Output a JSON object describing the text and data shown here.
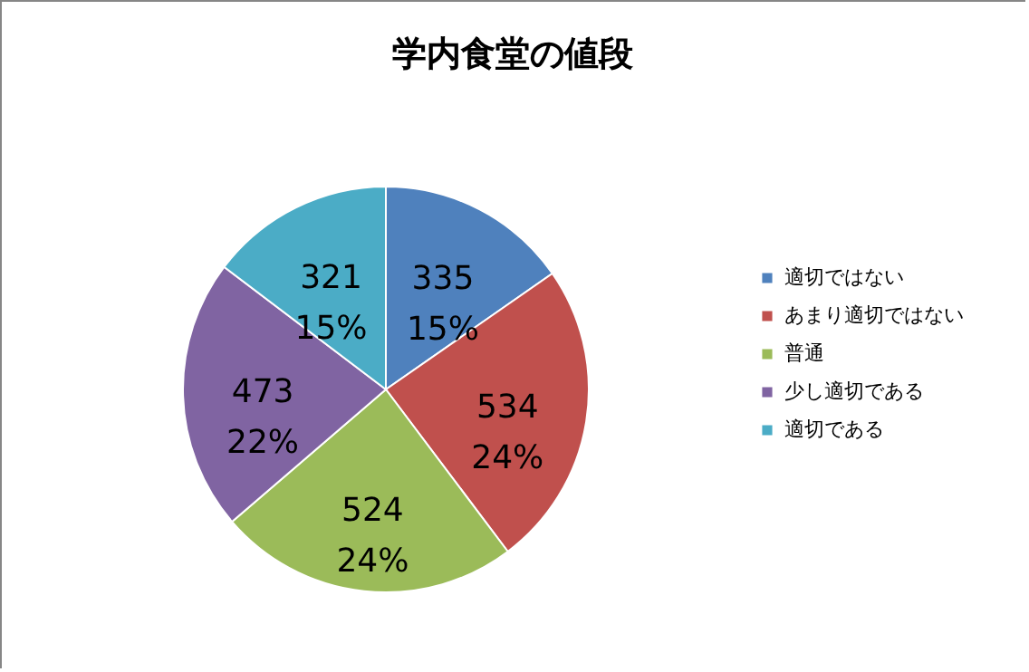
{
  "chart_data": {
    "type": "pie",
    "title": "学内食堂の値段",
    "categories": [
      "適切ではない",
      "あまり適切ではない",
      "普通",
      "少し適切である",
      "適切である"
    ],
    "values": [
      335,
      534,
      524,
      473,
      321
    ],
    "colors": [
      "#4f81bd",
      "#c0504d",
      "#9bbb59",
      "#8064a2",
      "#4bacc6"
    ],
    "value_labels": [
      "335\n15%",
      "534\n24%",
      "524\n24%",
      "473\n22%",
      "321\n15%"
    ],
    "legend": "right"
  }
}
